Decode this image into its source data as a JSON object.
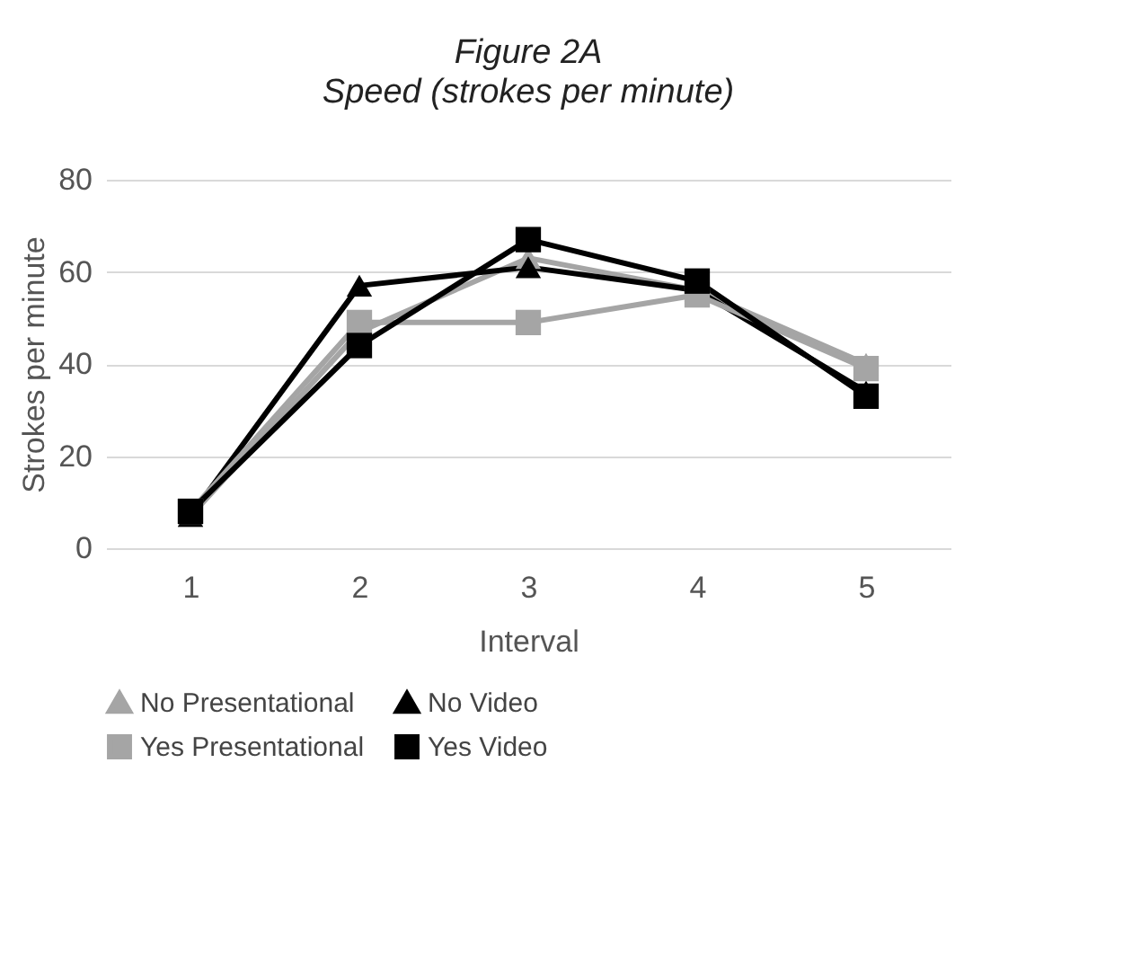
{
  "chart_data": {
    "type": "line",
    "title": "Figure 2A",
    "subtitle": "Speed (strokes per minute)",
    "xlabel": "Interval",
    "ylabel": "Strokes per minute",
    "categories": [
      "1",
      "2",
      "3",
      "4",
      "5"
    ],
    "series": [
      {
        "name": "No Presentational",
        "color": "#a5a5a5",
        "marker": "triangle",
        "values": [
          7,
          47,
          63,
          56,
          40
        ]
      },
      {
        "name": "No Video",
        "color": "#000000",
        "marker": "triangle",
        "values": [
          7,
          57,
          61,
          56,
          34
        ]
      },
      {
        "name": "Yes Presentational",
        "color": "#a5a5a5",
        "marker": "square",
        "values": [
          8,
          49,
          49,
          55,
          39
        ]
      },
      {
        "name": "Yes Video",
        "color": "#000000",
        "marker": "square",
        "values": [
          8,
          44,
          67,
          58,
          33
        ]
      }
    ],
    "ylim": [
      0,
      80
    ],
    "yticks": [
      0,
      20,
      40,
      60,
      80
    ],
    "grid": "y",
    "legend": "bottom",
    "line_style": "solid"
  }
}
